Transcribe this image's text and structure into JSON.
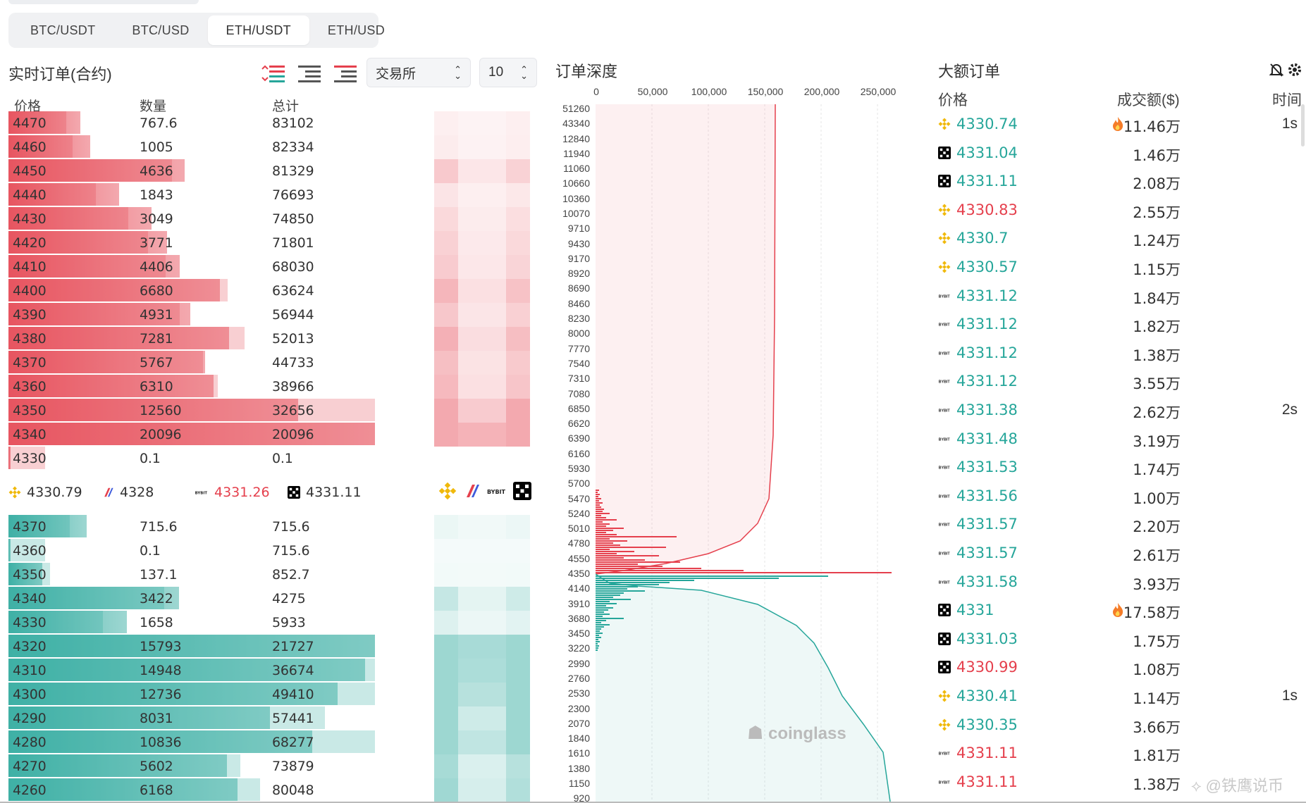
{
  "tabs": [
    {
      "label": "BTC/USDT"
    },
    {
      "label": "BTC/USD"
    },
    {
      "label": "ETH/USDT",
      "active": true
    },
    {
      "label": "ETH/USD"
    }
  ],
  "orders": {
    "title": "实时订单(合约)",
    "exchange_select": "交易所",
    "depth_select": "10",
    "headers": {
      "price": "价格",
      "qty": "数量",
      "total": "总计"
    },
    "asks": [
      {
        "price": "4470",
        "qty": "767.6",
        "total": "83102",
        "q": 767.6
      },
      {
        "price": "4460",
        "qty": "1005",
        "total": "82334",
        "q": 1005
      },
      {
        "price": "4450",
        "qty": "4636",
        "total": "81329",
        "q": 4636
      },
      {
        "price": "4440",
        "qty": "1843",
        "total": "76693",
        "q": 1843
      },
      {
        "price": "4430",
        "qty": "3049",
        "total": "74850",
        "q": 3049
      },
      {
        "price": "4420",
        "qty": "3771",
        "total": "71801",
        "q": 3771
      },
      {
        "price": "4410",
        "qty": "4406",
        "total": "68030",
        "q": 4406
      },
      {
        "price": "4400",
        "qty": "6680",
        "total": "63624",
        "q": 6680
      },
      {
        "price": "4390",
        "qty": "4931",
        "total": "56944",
        "q": 4931
      },
      {
        "price": "4380",
        "qty": "7281",
        "total": "52013",
        "q": 7281
      },
      {
        "price": "4370",
        "qty": "5767",
        "total": "44733",
        "q": 5767
      },
      {
        "price": "4360",
        "qty": "6310",
        "total": "38966",
        "q": 6310
      },
      {
        "price": "4350",
        "qty": "12560",
        "total": "32656",
        "q": 12560
      },
      {
        "price": "4340",
        "qty": "20096",
        "total": "20096",
        "q": 20096
      },
      {
        "price": "4330",
        "qty": "0.1",
        "total": "0.1",
        "q": 0.1
      }
    ],
    "exchange_prices": [
      {
        "icon": "binance-icon",
        "price": "4330.79",
        "color": "#333"
      },
      {
        "icon": "bitmex-icon",
        "price": "4328",
        "color": "#333"
      },
      {
        "icon": "bybit-icon",
        "price": "4331.26",
        "color": "#e5404d"
      },
      {
        "icon": "okx-icon",
        "price": "4331.11",
        "color": "#333"
      }
    ],
    "bids": [
      {
        "price": "4370",
        "qty": "715.6",
        "total": "715.6",
        "q": 715.6
      },
      {
        "price": "4360",
        "qty": "0.1",
        "total": "715.6",
        "q": 0.1
      },
      {
        "price": "4350",
        "qty": "137.1",
        "total": "852.7",
        "q": 137.1
      },
      {
        "price": "4340",
        "qty": "3422",
        "total": "4275",
        "q": 3422
      },
      {
        "price": "4330",
        "qty": "1658",
        "total": "5933",
        "q": 1658
      },
      {
        "price": "4320",
        "qty": "15793",
        "total": "21727",
        "q": 15793
      },
      {
        "price": "4310",
        "qty": "14948",
        "total": "36674",
        "q": 14948
      },
      {
        "price": "4300",
        "qty": "12736",
        "total": "49410",
        "q": 12736
      },
      {
        "price": "4290",
        "qty": "8031",
        "total": "57441",
        "q": 8031
      },
      {
        "price": "4280",
        "qty": "10836",
        "total": "68277",
        "q": 10836
      },
      {
        "price": "4270",
        "qty": "5602",
        "total": "73879",
        "q": 5602
      },
      {
        "price": "4260",
        "qty": "6168",
        "total": "80048",
        "q": 6168
      }
    ]
  },
  "depth": {
    "title": "订单深度",
    "x_ticks": [
      "0",
      "50,000",
      "100,000",
      "150,000",
      "200,000",
      "250,000"
    ],
    "y_ticks": [
      "51260",
      "43340",
      "12840",
      "11940",
      "11060",
      "10660",
      "10360",
      "10070",
      "9710",
      "9430",
      "9170",
      "8920",
      "8690",
      "8460",
      "8230",
      "8000",
      "7770",
      "7540",
      "7310",
      "7080",
      "6850",
      "6620",
      "6390",
      "6160",
      "5930",
      "5700",
      "5470",
      "5240",
      "5010",
      "4780",
      "4550",
      "4350",
      "4140",
      "3910",
      "3680",
      "3450",
      "3220",
      "2990",
      "2760",
      "2530",
      "2300",
      "2070",
      "1840",
      "1610",
      "1380",
      "1150",
      "920"
    ],
    "logo": "coinglass"
  },
  "big_orders": {
    "title": "大额订单",
    "headers": {
      "price": "价格",
      "amount": "成交额($)",
      "time": "时间"
    },
    "rows": [
      {
        "ex": "binance",
        "price": "4330.74",
        "color": "#26a69a",
        "amount": "11.46万",
        "fire": true,
        "time": "1s"
      },
      {
        "ex": "okx",
        "price": "4331.04",
        "color": "#26a69a",
        "amount": "1.46万",
        "time": ""
      },
      {
        "ex": "okx",
        "price": "4331.11",
        "color": "#26a69a",
        "amount": "2.08万",
        "time": ""
      },
      {
        "ex": "binance",
        "price": "4330.83",
        "color": "#e5404d",
        "amount": "2.55万",
        "time": ""
      },
      {
        "ex": "binance",
        "price": "4330.7",
        "color": "#26a69a",
        "amount": "1.24万",
        "time": ""
      },
      {
        "ex": "binance",
        "price": "4330.57",
        "color": "#26a69a",
        "amount": "1.15万",
        "time": ""
      },
      {
        "ex": "bybit",
        "price": "4331.12",
        "color": "#26a69a",
        "amount": "1.84万",
        "time": ""
      },
      {
        "ex": "bybit",
        "price": "4331.12",
        "color": "#26a69a",
        "amount": "1.82万",
        "time": ""
      },
      {
        "ex": "bybit",
        "price": "4331.12",
        "color": "#26a69a",
        "amount": "1.38万",
        "time": ""
      },
      {
        "ex": "bybit",
        "price": "4331.12",
        "color": "#26a69a",
        "amount": "3.55万",
        "time": ""
      },
      {
        "ex": "bybit",
        "price": "4331.38",
        "color": "#26a69a",
        "amount": "2.62万",
        "time": "2s"
      },
      {
        "ex": "bybit",
        "price": "4331.48",
        "color": "#26a69a",
        "amount": "3.19万",
        "time": ""
      },
      {
        "ex": "bybit",
        "price": "4331.53",
        "color": "#26a69a",
        "amount": "1.74万",
        "time": ""
      },
      {
        "ex": "bybit",
        "price": "4331.56",
        "color": "#26a69a",
        "amount": "1.00万",
        "time": ""
      },
      {
        "ex": "bybit",
        "price": "4331.57",
        "color": "#26a69a",
        "amount": "2.20万",
        "time": ""
      },
      {
        "ex": "bybit",
        "price": "4331.57",
        "color": "#26a69a",
        "amount": "2.61万",
        "time": ""
      },
      {
        "ex": "bybit",
        "price": "4331.58",
        "color": "#26a69a",
        "amount": "3.93万",
        "time": ""
      },
      {
        "ex": "okx",
        "price": "4331",
        "color": "#26a69a",
        "amount": "17.58万",
        "fire": true,
        "time": ""
      },
      {
        "ex": "okx",
        "price": "4331.03",
        "color": "#26a69a",
        "amount": "1.75万",
        "time": ""
      },
      {
        "ex": "okx",
        "price": "4330.99",
        "color": "#e5404d",
        "amount": "1.08万",
        "time": ""
      },
      {
        "ex": "binance",
        "price": "4330.41",
        "color": "#26a69a",
        "amount": "1.14万",
        "time": "1s"
      },
      {
        "ex": "binance",
        "price": "4330.35",
        "color": "#26a69a",
        "amount": "3.66万",
        "time": ""
      },
      {
        "ex": "bybit",
        "price": "4331.11",
        "color": "#e5404d",
        "amount": "1.81万",
        "time": ""
      },
      {
        "ex": "bybit",
        "price": "4331.11",
        "color": "#e5404d",
        "amount": "1.38万",
        "time": ""
      }
    ]
  },
  "watermark": "⟡ @铁鹰说币",
  "colors": {
    "ask": "#e5404d",
    "bid": "#26a69a",
    "ask_bar": "#f2a7ad",
    "bid_bar": "#a8dcd3"
  }
}
